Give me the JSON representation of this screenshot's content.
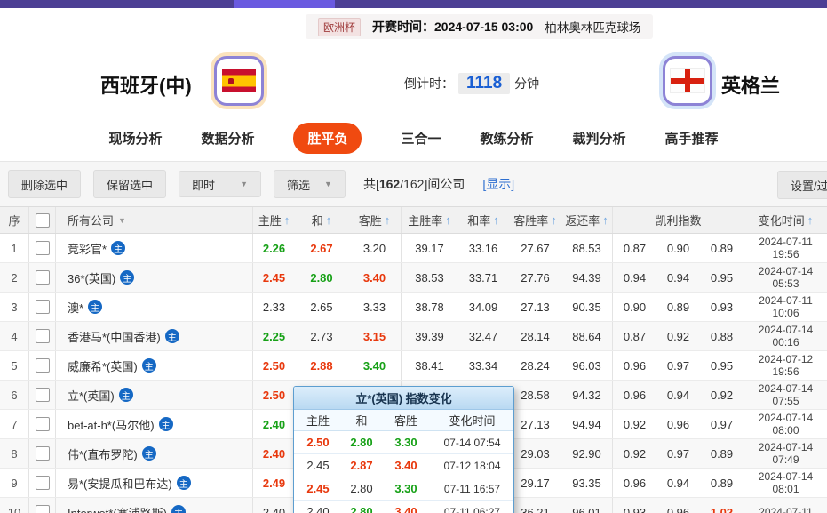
{
  "match": {
    "league": "欧洲杯",
    "kickoff": "开赛时间：2024-07-15 03:00",
    "venue": "柏林奥林匹克球场"
  },
  "teams": {
    "home": "西班牙(中)",
    "away": "英格兰",
    "countdown_label": "倒计时：",
    "countdown_value": "1118",
    "countdown_unit": "分钟"
  },
  "tabs": [
    {
      "label": "现场分析"
    },
    {
      "label": "数据分析"
    },
    {
      "label": "胜平负",
      "active": true
    },
    {
      "label": "三合一"
    },
    {
      "label": "教练分析"
    },
    {
      "label": "裁判分析"
    },
    {
      "label": "高手推荐"
    }
  ],
  "toolbar": {
    "delete_btn": "删除选中",
    "keep_btn": "保留选中",
    "time_filter": "即时",
    "filter_btn": "筛选",
    "count_prefix": "共[",
    "count_value": "162",
    "count_suffix": "/162]间公司",
    "show_link": "[显示]",
    "settings_btn": "设置/过滤"
  },
  "icons": {
    "sort_asc": "↑",
    "caret_down": "▼",
    "main_badge": "主"
  },
  "table": {
    "headers": {
      "seq": "序",
      "company": "所有公司",
      "home": "主胜",
      "draw": "和",
      "away": "客胜",
      "home_rate": "主胜率",
      "draw_rate": "和率",
      "away_rate": "客胜率",
      "payout": "返还率",
      "kelly": "凯利指数",
      "change_time": "变化时间"
    },
    "rows": [
      {
        "num": "1",
        "company": "竞彩官*",
        "odds": [
          {
            "v": "2.26",
            "c": "g"
          },
          {
            "v": "2.67",
            "c": "r"
          },
          {
            "v": "3.20",
            "c": "k"
          }
        ],
        "rates": [
          "39.17",
          "33.16",
          "27.67",
          "88.53"
        ],
        "kelly": [
          {
            "v": "0.87",
            "c": "k"
          },
          {
            "v": "0.90",
            "c": "k"
          },
          {
            "v": "0.89",
            "c": "k"
          }
        ],
        "date": "2024-07-11",
        "time": "19:56"
      },
      {
        "num": "2",
        "company": "36*(英国)",
        "odds": [
          {
            "v": "2.45",
            "c": "r"
          },
          {
            "v": "2.80",
            "c": "g"
          },
          {
            "v": "3.40",
            "c": "r"
          }
        ],
        "rates": [
          "38.53",
          "33.71",
          "27.76",
          "94.39"
        ],
        "kelly": [
          {
            "v": "0.94",
            "c": "k"
          },
          {
            "v": "0.94",
            "c": "k"
          },
          {
            "v": "0.95",
            "c": "k"
          }
        ],
        "date": "2024-07-14",
        "time": "05:53"
      },
      {
        "num": "3",
        "company": "澳*",
        "odds": [
          {
            "v": "2.33",
            "c": "k"
          },
          {
            "v": "2.65",
            "c": "k"
          },
          {
            "v": "3.33",
            "c": "k"
          }
        ],
        "rates": [
          "38.78",
          "34.09",
          "27.13",
          "90.35"
        ],
        "kelly": [
          {
            "v": "0.90",
            "c": "k"
          },
          {
            "v": "0.89",
            "c": "k"
          },
          {
            "v": "0.93",
            "c": "k"
          }
        ],
        "date": "2024-07-11",
        "time": "10:06"
      },
      {
        "num": "4",
        "company": "香港马*(中国香港)",
        "odds": [
          {
            "v": "2.25",
            "c": "g"
          },
          {
            "v": "2.73",
            "c": "k"
          },
          {
            "v": "3.15",
            "c": "r"
          }
        ],
        "rates": [
          "39.39",
          "32.47",
          "28.14",
          "88.64"
        ],
        "kelly": [
          {
            "v": "0.87",
            "c": "k"
          },
          {
            "v": "0.92",
            "c": "k"
          },
          {
            "v": "0.88",
            "c": "k"
          }
        ],
        "date": "2024-07-14",
        "time": "00:16"
      },
      {
        "num": "5",
        "company": "威廉希*(英国)",
        "odds": [
          {
            "v": "2.50",
            "c": "r"
          },
          {
            "v": "2.88",
            "c": "r"
          },
          {
            "v": "3.40",
            "c": "g"
          }
        ],
        "rates": [
          "38.41",
          "33.34",
          "28.24",
          "96.03"
        ],
        "kelly": [
          {
            "v": "0.96",
            "c": "k"
          },
          {
            "v": "0.97",
            "c": "k"
          },
          {
            "v": "0.95",
            "c": "k"
          }
        ],
        "date": "2024-07-12",
        "time": "19:56"
      },
      {
        "num": "6",
        "company": "立*(英国)",
        "odds": [
          {
            "v": "2.50",
            "c": "r"
          },
          {
            "v": "",
            "c": "k"
          },
          {
            "v": "",
            "c": "k"
          }
        ],
        "rates": [
          "",
          "",
          "28.58",
          "94.32"
        ],
        "kelly": [
          {
            "v": "0.96",
            "c": "k"
          },
          {
            "v": "0.94",
            "c": "k"
          },
          {
            "v": "0.92",
            "c": "k"
          }
        ],
        "date": "2024-07-14",
        "time": "07:55"
      },
      {
        "num": "7",
        "company": "bet-at-h*(马尔他)",
        "odds": [
          {
            "v": "2.40",
            "c": "g"
          },
          {
            "v": "",
            "c": "k"
          },
          {
            "v": "",
            "c": "k"
          }
        ],
        "rates": [
          "",
          "",
          "27.13",
          "94.94"
        ],
        "kelly": [
          {
            "v": "0.92",
            "c": "k"
          },
          {
            "v": "0.96",
            "c": "k"
          },
          {
            "v": "0.97",
            "c": "k"
          }
        ],
        "date": "2024-07-14",
        "time": "08:00"
      },
      {
        "num": "8",
        "company": "伟*(直布罗陀)",
        "odds": [
          {
            "v": "2.40",
            "c": "r"
          },
          {
            "v": "",
            "c": "k"
          },
          {
            "v": "",
            "c": "k"
          }
        ],
        "rates": [
          "",
          "",
          "29.03",
          "92.90"
        ],
        "kelly": [
          {
            "v": "0.92",
            "c": "k"
          },
          {
            "v": "0.97",
            "c": "k"
          },
          {
            "v": "0.89",
            "c": "k"
          }
        ],
        "date": "2024-07-14",
        "time": "07:49"
      },
      {
        "num": "9",
        "company": "易*(安提瓜和巴布达)",
        "odds": [
          {
            "v": "2.49",
            "c": "r"
          },
          {
            "v": "",
            "c": "k"
          },
          {
            "v": "",
            "c": "k"
          }
        ],
        "rates": [
          "",
          "",
          "29.17",
          "93.35"
        ],
        "kelly": [
          {
            "v": "0.96",
            "c": "k"
          },
          {
            "v": "0.94",
            "c": "k"
          },
          {
            "v": "0.89",
            "c": "k"
          }
        ],
        "date": "2024-07-14",
        "time": "08:01"
      },
      {
        "num": "10",
        "company": "Interwet*(塞浦路斯)",
        "odds": [
          {
            "v": "2.40",
            "c": "k"
          },
          {
            "v": "",
            "c": "k"
          },
          {
            "v": "",
            "c": "k"
          }
        ],
        "rates": [
          "",
          "",
          "36.21",
          "96.01"
        ],
        "kelly": [
          {
            "v": "0.93",
            "c": "k"
          },
          {
            "v": "0.96",
            "c": "k"
          },
          {
            "v": "1.02",
            "c": "r"
          }
        ],
        "date": "2024-07-11",
        "time": ""
      }
    ]
  },
  "popup": {
    "title": "立*(英国) 指数变化",
    "headers": {
      "home": "主胜",
      "draw": "和",
      "away": "客胜",
      "time": "变化时间"
    },
    "rows": [
      {
        "home": {
          "v": "2.50",
          "c": "r"
        },
        "draw": {
          "v": "2.80",
          "c": "g"
        },
        "away": {
          "v": "3.30",
          "c": "g"
        },
        "time": "07-14 07:54"
      },
      {
        "home": {
          "v": "2.45",
          "c": "k"
        },
        "draw": {
          "v": "2.87",
          "c": "r"
        },
        "away": {
          "v": "3.40",
          "c": "r"
        },
        "time": "07-12 18:04"
      },
      {
        "home": {
          "v": "2.45",
          "c": "r"
        },
        "draw": {
          "v": "2.80",
          "c": "k"
        },
        "away": {
          "v": "3.30",
          "c": "g"
        },
        "time": "07-11 16:57"
      },
      {
        "home": {
          "v": "2.40",
          "c": "k"
        },
        "draw": {
          "v": "2.80",
          "c": "g"
        },
        "away": {
          "v": "3.40",
          "c": "r"
        },
        "time": "07-11 06:27"
      }
    ]
  },
  "colors": {
    "odds_up_red": "#e8380d",
    "odds_down_green": "#17a117",
    "active_tab_orange": "#f04a10",
    "link_blue": "#2e6fd0",
    "countdown_blue": "#1a5fd3",
    "topbar_purple": "#4c3f94",
    "topbar_light_purple": "#6a5ae0",
    "main_icon_blue": "#1568c4"
  }
}
